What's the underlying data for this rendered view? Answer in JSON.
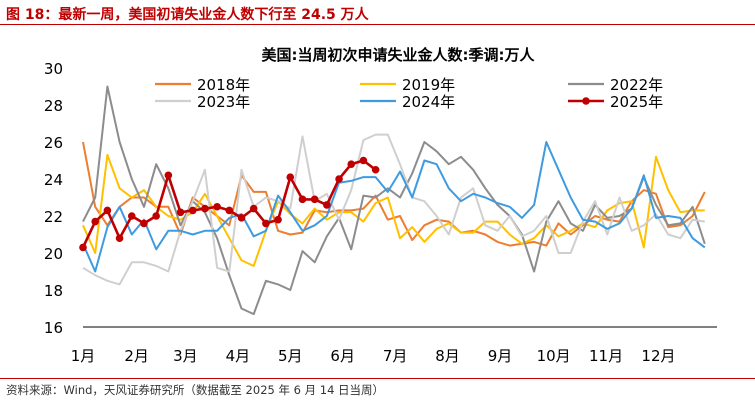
{
  "figure": {
    "title": "图 18：最新一周，美国初请失业金人数下行至 24.5 万人",
    "source": "资料来源：Wind，天风证券研究所（数据截至 2025 年 6 月 14 日当周）"
  },
  "colors": {
    "2018年": "#ed7d31",
    "2019年": "#ffc000",
    "2022年": "#8c8c8c",
    "2023年": "#cfcfcf",
    "2024年": "#3e9be0",
    "2025年": "#c00000",
    "accent": "#c00000"
  },
  "chart_data": {
    "type": "line",
    "title": "美国:当周初次申请失业金人数:季调:万人",
    "xlabel": "",
    "ylabel": "",
    "ylim": [
      16,
      30
    ],
    "yticks": [
      16,
      18,
      20,
      22,
      24,
      26,
      28,
      30
    ],
    "x_unit": "week of year",
    "xlim": [
      1,
      53
    ],
    "x_tick_labels": [
      "1月",
      "2月",
      "3月",
      "4月",
      "5月",
      "6月",
      "7月",
      "8月",
      "9月",
      "10月",
      "11月",
      "12月"
    ],
    "x_tick_weeks": [
      1,
      5.4,
      9.4,
      13.7,
      18,
      22.3,
      26.6,
      30.9,
      35.2,
      39.6,
      43.9,
      48.2
    ],
    "grid": false,
    "legend_position": "top",
    "series": [
      {
        "name": "2018年",
        "marker": false,
        "values": [
          26.0,
          22.5,
          21.5,
          22.5,
          23.0,
          23.0,
          22.5,
          22.5,
          21.0,
          23.0,
          22.5,
          22.0,
          21.5,
          24.2,
          23.3,
          23.3,
          21.2,
          21.0,
          21.1,
          22.3,
          22.2,
          22.3,
          22.3,
          22.4,
          23.1,
          21.8,
          22.0,
          20.7,
          21.5,
          21.8,
          21.7,
          21.1,
          21.2,
          21.0,
          20.6,
          20.4,
          20.5,
          20.6,
          20.4,
          21.6,
          21.0,
          21.5,
          22.0,
          21.8,
          21.7,
          22.8,
          23.4,
          23.2,
          21.4,
          21.5,
          22.0,
          23.3
        ]
      },
      {
        "name": "2019年",
        "marker": false,
        "values": [
          21.5,
          20.0,
          25.3,
          23.5,
          23.0,
          23.4,
          22.5,
          22.0,
          21.8,
          22.2,
          23.2,
          22.0,
          20.8,
          19.6,
          19.3,
          21.2,
          22.8,
          22.1,
          21.6,
          22.4,
          21.8,
          22.2,
          22.2,
          21.7,
          22.7,
          23.0,
          20.8,
          21.4,
          20.6,
          21.3,
          21.6,
          21.1,
          21.1,
          21.7,
          21.7,
          21.0,
          20.5,
          20.8,
          21.5,
          20.9,
          21.2,
          21.6,
          21.4,
          22.3,
          22.7,
          22.8,
          20.3,
          25.2,
          23.4,
          22.2,
          22.3,
          22.3
        ]
      },
      {
        "name": "2022年",
        "marker": false,
        "values": [
          21.7,
          23.0,
          29.0,
          26.0,
          24.0,
          22.5,
          24.8,
          23.5,
          21.5,
          22.8,
          22.2,
          20.8,
          18.8,
          17.0,
          16.7,
          18.5,
          18.3,
          18.0,
          20.1,
          19.5,
          20.9,
          21.9,
          20.2,
          23.1,
          23.0,
          23.5,
          23.0,
          24.3,
          26.0,
          25.5,
          24.8,
          25.2,
          24.5,
          23.5,
          22.6,
          22.0,
          21.0,
          19.0,
          21.7,
          22.8,
          21.6,
          21.2,
          22.6,
          21.9,
          22.0,
          22.4,
          24.1,
          22.6,
          21.5,
          21.6,
          22.5,
          20.5
        ]
      },
      {
        "name": "2023年",
        "marker": false,
        "values": [
          19.2,
          18.8,
          18.5,
          18.3,
          19.5,
          19.5,
          19.3,
          19.0,
          21.2,
          22.8,
          24.5,
          19.2,
          19.0,
          24.5,
          22.5,
          23.0,
          22.8,
          22.4,
          26.3,
          22.8,
          23.2,
          21.8,
          23.4,
          26.1,
          26.4,
          26.4,
          24.8,
          23.0,
          22.8,
          22.0,
          21.0,
          23.0,
          23.5,
          21.5,
          21.2,
          22.0,
          20.9,
          21.2,
          22.0,
          20.0,
          20.0,
          21.7,
          22.8,
          21.0,
          23.0,
          21.2,
          21.5,
          22.1,
          21.0,
          20.8,
          21.8,
          21.7
        ]
      },
      {
        "name": "2024年",
        "marker": false,
        "values": [
          20.5,
          19.0,
          21.4,
          22.5,
          21.0,
          21.8,
          20.2,
          21.2,
          21.2,
          21.0,
          21.2,
          21.2,
          21.9,
          22.1,
          20.9,
          21.2,
          23.1,
          22.2,
          21.2,
          21.5,
          22.0,
          23.8,
          23.9,
          24.1,
          24.1,
          23.3,
          24.4,
          23.0,
          25.0,
          24.8,
          23.5,
          22.8,
          23.2,
          23.0,
          22.7,
          22.5,
          21.9,
          22.6,
          26.0,
          24.5,
          23.0,
          21.8,
          21.7,
          21.3,
          21.6,
          22.4,
          24.2,
          21.9,
          22.0,
          21.9,
          20.8,
          20.3
        ]
      },
      {
        "name": "2025年",
        "marker": true,
        "values": [
          20.3,
          21.7,
          22.3,
          20.8,
          22.0,
          21.6,
          22.0,
          24.2,
          22.2,
          22.3,
          22.4,
          22.5,
          22.3,
          21.9,
          22.4,
          21.6,
          21.8,
          24.1,
          22.9,
          22.9,
          22.6,
          24.0,
          24.8,
          25.0,
          24.5
        ]
      }
    ]
  }
}
